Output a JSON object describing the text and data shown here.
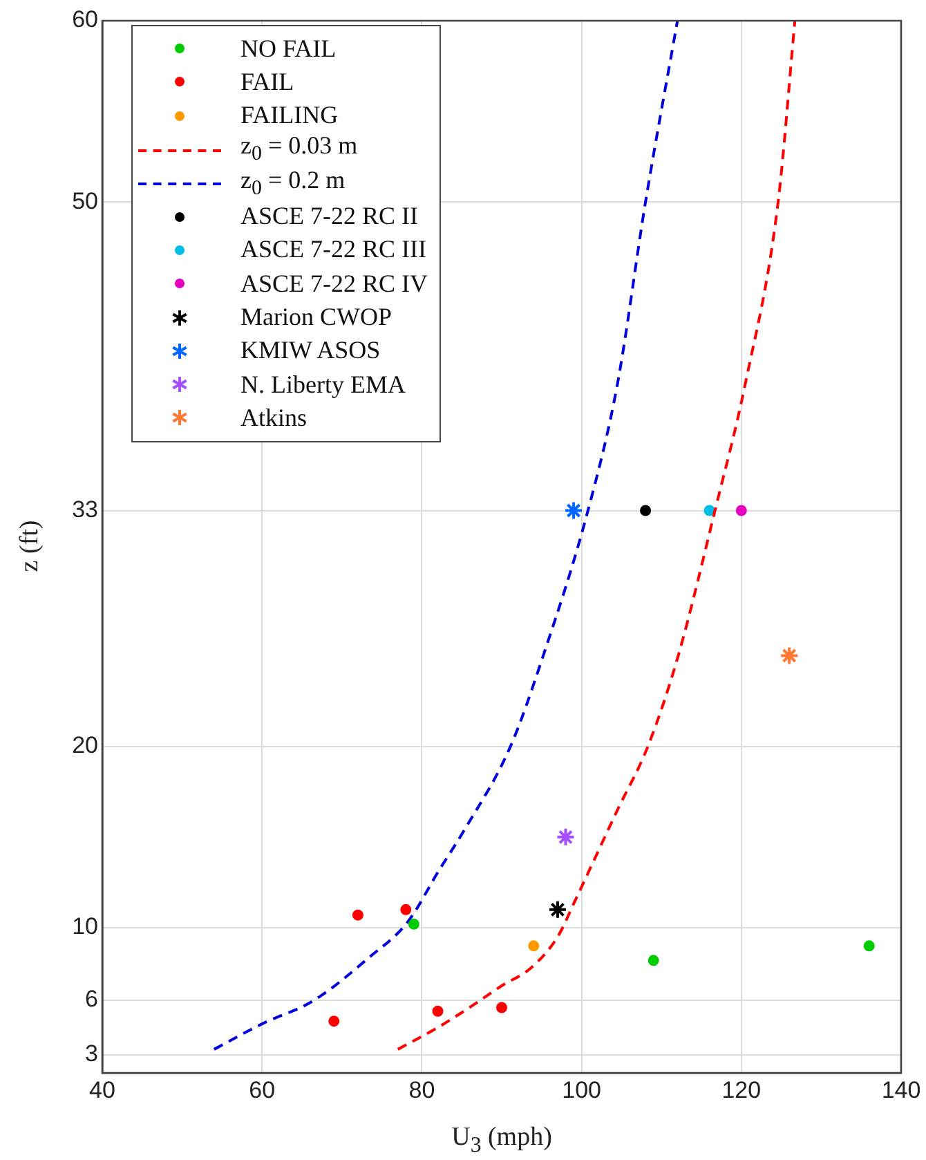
{
  "chart_data": {
    "type": "scatter",
    "xlabel": "U$_{3}$ (mph)",
    "ylabel": "z (ft)",
    "xlim": [
      40,
      140
    ],
    "xticks": [
      40,
      60,
      80,
      100,
      120,
      140
    ],
    "ylim": [
      2,
      60
    ],
    "yticks": [
      3,
      6,
      10,
      20,
      33,
      50,
      60
    ],
    "grid": true,
    "legend": "top left",
    "series": [
      {
        "name": "NO FAIL",
        "color": "#00cc00",
        "marker": "circle",
        "x": [
          79,
          109,
          136
        ],
        "values": [
          10.2,
          8.2,
          9.0
        ]
      },
      {
        "name": "FAIL",
        "color": "#ff0000",
        "marker": "circle",
        "x": [
          72,
          78,
          69,
          82,
          90
        ],
        "values": [
          10.7,
          11.0,
          4.85,
          5.4,
          5.6
        ]
      },
      {
        "name": "FAILING",
        "color": "#ff9900",
        "marker": "circle",
        "x": [
          94
        ],
        "values": [
          9.0
        ]
      },
      {
        "name": "z$_{0}$ = 0.03 m",
        "type": "line",
        "color": "#ff0000",
        "marker": "none",
        "line_style": "dashed",
        "x": [
          77,
          82,
          86.3,
          90,
          93.7,
          97,
          99.3,
          101,
          104.5,
          108.3,
          112.1,
          116.7,
          120.5,
          124.6,
          126.7
        ],
        "values": [
          3.3,
          4.5,
          5.7,
          6.8,
          7.8,
          9.5,
          11.6,
          13.2,
          16.5,
          20,
          25,
          33,
          40,
          50,
          60
        ]
      },
      {
        "name": "z$_{0}$ = 0.2 m",
        "type": "line",
        "color": "#0000dd",
        "marker": "none",
        "line_style": "dashed",
        "x": [
          54,
          60,
          66.5,
          73.5,
          78.2,
          82.2,
          85.2,
          91.1,
          95.2,
          100.8,
          104.5,
          108,
          112
        ],
        "values": [
          3.3,
          4.7,
          6.0,
          8.4,
          10.3,
          13.2,
          15.3,
          20,
          25,
          33,
          40,
          50,
          60
        ]
      },
      {
        "name": "ASCE 7-22 RC II",
        "color": "#000000",
        "marker": "circle",
        "x": [
          108
        ],
        "values": [
          33
        ]
      },
      {
        "name": "ASCE 7-22 RC III",
        "color": "#00bfe6",
        "marker": "circle",
        "x": [
          116
        ],
        "values": [
          33
        ]
      },
      {
        "name": "ASCE 7-22 RC IV",
        "color": "#e600c0",
        "marker": "circle",
        "x": [
          120
        ],
        "values": [
          33
        ]
      },
      {
        "name": "Marion CWOP",
        "color": "#000000",
        "marker": "cross",
        "x": [
          97
        ],
        "values": [
          11.0
        ]
      },
      {
        "name": "KMIW ASOS",
        "color": "#0066ff",
        "marker": "cross",
        "x": [
          99
        ],
        "values": [
          33
        ]
      },
      {
        "name": "N. Liberty EMA",
        "color": "#a64dff",
        "marker": "cross",
        "x": [
          98
        ],
        "values": [
          15.0
        ]
      },
      {
        "name": "Atkins",
        "color": "#ff7733",
        "marker": "cross",
        "x": [
          126
        ],
        "values": [
          25.0
        ]
      }
    ]
  }
}
